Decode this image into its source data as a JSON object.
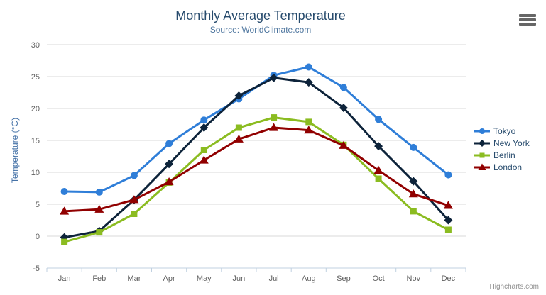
{
  "header": {
    "title": "Monthly Average Temperature",
    "subtitle": "Source: WorldClimate.com"
  },
  "credits": "Highcharts.com",
  "chart_data": {
    "type": "line",
    "title": "Monthly Average Temperature",
    "subtitle": "Source: WorldClimate.com",
    "xlabel": "",
    "ylabel": "Temperature (°C)",
    "categories": [
      "Jan",
      "Feb",
      "Mar",
      "Apr",
      "May",
      "Jun",
      "Jul",
      "Aug",
      "Sep",
      "Oct",
      "Nov",
      "Dec"
    ],
    "ylim": [
      -5,
      30
    ],
    "yticks": [
      -5,
      0,
      5,
      10,
      15,
      20,
      25,
      30
    ],
    "grid": true,
    "legend_position": "right",
    "series": [
      {
        "name": "Tokyo",
        "color": "#2f7ed8",
        "marker": "circle",
        "values": [
          7.0,
          6.9,
          9.5,
          14.5,
          18.2,
          21.5,
          25.2,
          26.5,
          23.3,
          18.3,
          13.9,
          9.6
        ]
      },
      {
        "name": "New York",
        "color": "#0d233a",
        "marker": "diamond",
        "values": [
          -0.2,
          0.8,
          5.7,
          11.3,
          17.0,
          22.0,
          24.8,
          24.1,
          20.1,
          14.1,
          8.6,
          2.5
        ]
      },
      {
        "name": "Berlin",
        "color": "#8bbc21",
        "marker": "square",
        "values": [
          -0.9,
          0.6,
          3.5,
          8.4,
          13.5,
          17.0,
          18.6,
          17.9,
          14.3,
          9.0,
          3.9,
          1.0
        ]
      },
      {
        "name": "London",
        "color": "#910000",
        "marker": "triangle",
        "values": [
          3.9,
          4.2,
          5.7,
          8.5,
          11.9,
          15.2,
          17.0,
          16.6,
          14.2,
          10.3,
          6.6,
          4.8
        ]
      }
    ],
    "axis_colors": {
      "grid": "#d8d8d8",
      "axis_line": "#c0d0e0",
      "tick": "#c0d0e0",
      "label": "#606060",
      "axis_title": "#4572a7"
    }
  }
}
